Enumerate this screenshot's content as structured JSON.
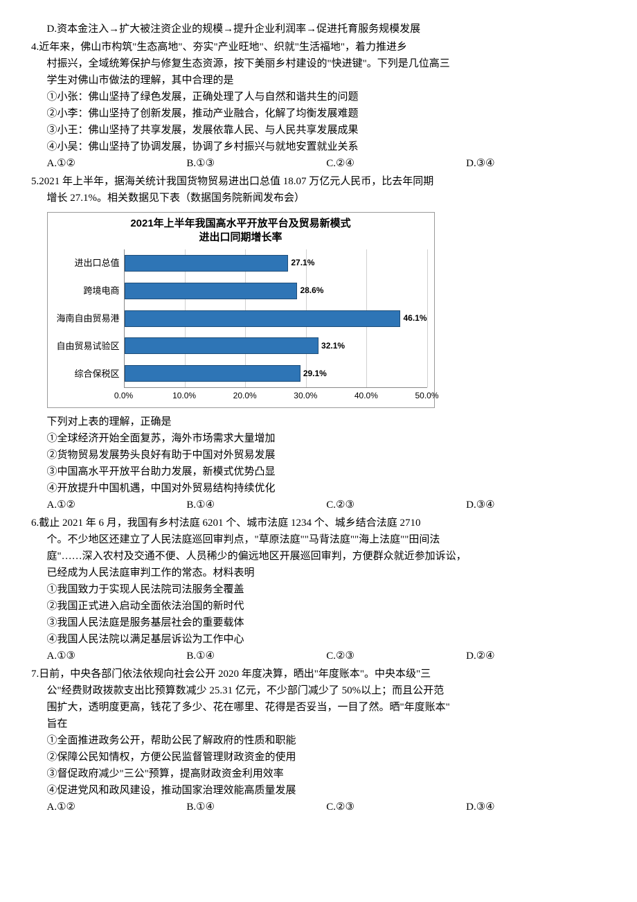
{
  "q3_optD": "D.资本金注入→扩大被注资企业的规模→提升企业利润率→促进托育服务规模发展",
  "q4": {
    "stem1": "4.近年来，佛山市构筑\"生态高地\"、夯实\"产业旺地\"、织就\"生活福地\"，着力推进乡",
    "stem2": "村振兴，全域统筹保护与修复生态资源，按下美丽乡村建设的\"快进键\"。下列是几位高三",
    "stem3": "学生对佛山市做法的理解，其中合理的是",
    "s1": "①小张：佛山坚持了绿色发展，正确处理了人与自然和谐共生的问题",
    "s2": "②小李：佛山坚持了创新发展，推动产业融合，化解了均衡发展难题",
    "s3": "③小王：佛山坚持了共享发展，发展依靠人民、与人民共享发展成果",
    "s4": "④小吴：佛山坚持了协调发展，协调了乡村振兴与就地安置就业关系",
    "opts": {
      "a": "A.①②",
      "b": "B.①③",
      "c": "C.②④",
      "d": "D.③④"
    }
  },
  "q5": {
    "stem1": "5.2021 年上半年，据海关统计我国货物贸易进出口总值 18.07 万亿元人民币，比去年同期",
    "stem2": "增长 27.1%。相关数据见下表（数据国务院新闻发布会）",
    "post": "下列对上表的理解，正确是",
    "s1": "①全球经济开始全面复苏，海外市场需求大量增加",
    "s2": "②货物贸易发展势头良好有助于中国对外贸易发展",
    "s3": "③中国高水平开放平台助力发展，新模式优势凸显",
    "s4": "④开放提升中国机遇，中国对外贸易结构持续优化",
    "opts": {
      "a": "A.①②",
      "b": "B.①④",
      "c": "C.②③",
      "d": "D.③④"
    }
  },
  "chart": {
    "title1": "2021年上半年我国高水平开放平台及贸易新模式",
    "title2": "进出口同期增长率",
    "categories": [
      "进出口总值",
      "跨境电商",
      "海南自由贸易港",
      "自由贸易试验区",
      "综合保税区"
    ],
    "values": [
      27.1,
      28.6,
      46.1,
      32.1,
      29.1
    ],
    "value_labels": [
      "27.1%",
      "28.6%",
      "46.1%",
      "32.1%",
      "29.1%"
    ],
    "xmax": 50,
    "xticks": [
      "0.0%",
      "10.0%",
      "20.0%",
      "30.0%",
      "40.0%",
      "50.0%"
    ],
    "bar_color": "#2e75b6",
    "bar_border": "#1f4e79",
    "grid_color": "#d0d0d0"
  },
  "q6": {
    "stem1": "6.截止 2021 年 6 月，我国有乡村法庭 6201 个、城市法庭 1234 个、城乡结合法庭 2710",
    "stem2": "个。不少地区还建立了人民法庭巡回审判点，\"草原法庭\"\"马背法庭\"\"海上法庭\"\"田间法",
    "stem3": "庭\"……深入农村及交通不便、人员稀少的偏远地区开展巡回审判，方便群众就近参加诉讼，",
    "stem4": "已经成为人民法庭审判工作的常态。材料表明",
    "s1": "①我国致力于实现人民法院司法服务全覆盖",
    "s2": "②我国正式进入启动全面依法治国的新时代",
    "s3": "③我国人民法庭是服务基层社会的重要载体",
    "s4": "④我国人民法院以满足基层诉讼为工作中心",
    "opts": {
      "a": "A.①③",
      "b": "B.①④",
      "c": "C.②③",
      "d": "D.②④"
    }
  },
  "q7": {
    "stem1": "7.日前，中央各部门依法依规向社会公开 2020 年度决算，晒出\"年度账本\"。中央本级\"三",
    "stem2": "公\"经费财政拨款支出比预算数减少 25.31 亿元，不少部门减少了 50%以上；而且公开范",
    "stem3": "围扩大，透明度更高，钱花了多少、花在哪里、花得是否妥当，一目了然。晒\"年度账本\"",
    "stem4": "旨在",
    "s1": "①全面推进政务公开，帮助公民了解政府的性质和职能",
    "s2": "②保障公民知情权，方便公民监督管理财政资金的使用",
    "s3": "③督促政府减少\"三公\"预算，提高财政资金利用效率",
    "s4": "④促进党风和政风建设，推动国家治理效能高质量发展",
    "opts": {
      "a": "A.①②",
      "b": "B.①④",
      "c": "C.②③",
      "d": "D.③④"
    }
  }
}
